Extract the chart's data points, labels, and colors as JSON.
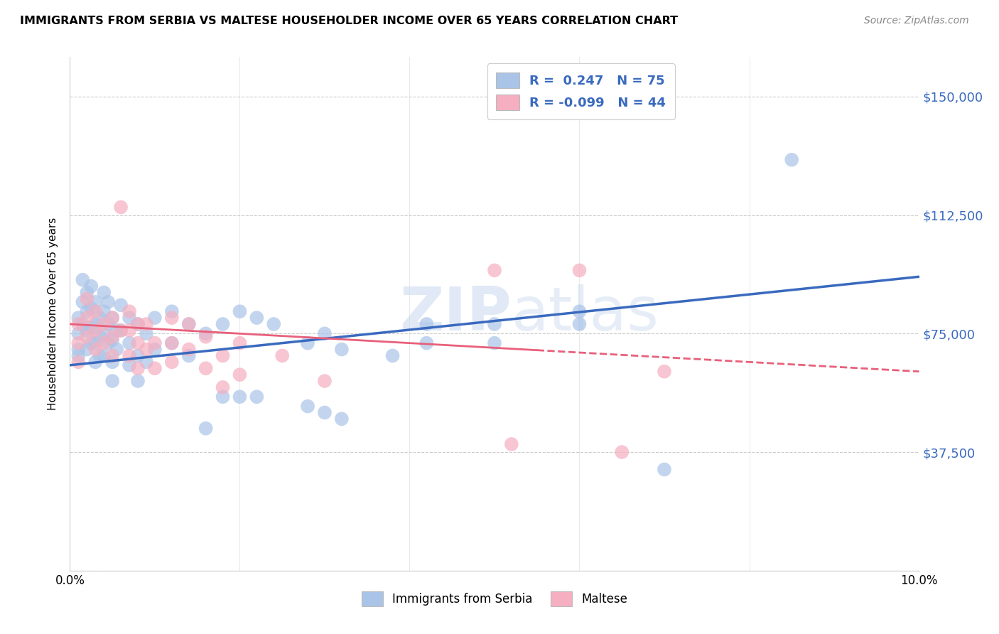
{
  "title": "IMMIGRANTS FROM SERBIA VS MALTESE HOUSEHOLDER INCOME OVER 65 YEARS CORRELATION CHART",
  "source": "Source: ZipAtlas.com",
  "ylabel": "Householder Income Over 65 years",
  "xlim": [
    0.0,
    0.1
  ],
  "ylim": [
    0,
    162500
  ],
  "yticks": [
    0,
    37500,
    75000,
    112500,
    150000
  ],
  "ytick_labels": [
    "",
    "$37,500",
    "$75,000",
    "$112,500",
    "$150,000"
  ],
  "xticks": [
    0.0,
    0.02,
    0.04,
    0.06,
    0.08,
    0.1
  ],
  "xtick_labels": [
    "0.0%",
    "",
    "",
    "",
    "",
    "10.0%"
  ],
  "color_blue": "#aac4e8",
  "color_pink": "#f5afc0",
  "line_blue": "#3a6abf",
  "line_pink": "#e8607a",
  "watermark_zip": "ZIP",
  "watermark_atlas": "atlas",
  "serbia_line": [
    [
      0.0,
      65000
    ],
    [
      0.1,
      93000
    ]
  ],
  "maltese_line": [
    [
      0.0,
      78000
    ],
    [
      0.1,
      63000
    ]
  ],
  "serbia_points": [
    [
      0.001,
      70000
    ],
    [
      0.001,
      75000
    ],
    [
      0.001,
      80000
    ],
    [
      0.001,
      68000
    ],
    [
      0.0015,
      92000
    ],
    [
      0.0015,
      85000
    ],
    [
      0.0015,
      78000
    ],
    [
      0.002,
      88000
    ],
    [
      0.002,
      82000
    ],
    [
      0.002,
      76000
    ],
    [
      0.002,
      70000
    ],
    [
      0.0025,
      90000
    ],
    [
      0.0025,
      83000
    ],
    [
      0.0025,
      77000
    ],
    [
      0.0025,
      72000
    ],
    [
      0.003,
      85000
    ],
    [
      0.003,
      78000
    ],
    [
      0.003,
      72000
    ],
    [
      0.003,
      66000
    ],
    [
      0.0035,
      80000
    ],
    [
      0.0035,
      74000
    ],
    [
      0.0035,
      68000
    ],
    [
      0.004,
      88000
    ],
    [
      0.004,
      82000
    ],
    [
      0.004,
      75000
    ],
    [
      0.004,
      68000
    ],
    [
      0.0045,
      85000
    ],
    [
      0.0045,
      78000
    ],
    [
      0.0045,
      72000
    ],
    [
      0.005,
      80000
    ],
    [
      0.005,
      73000
    ],
    [
      0.005,
      66000
    ],
    [
      0.005,
      60000
    ],
    [
      0.0055,
      76000
    ],
    [
      0.0055,
      70000
    ],
    [
      0.006,
      84000
    ],
    [
      0.006,
      76000
    ],
    [
      0.007,
      80000
    ],
    [
      0.007,
      72000
    ],
    [
      0.007,
      65000
    ],
    [
      0.008,
      78000
    ],
    [
      0.008,
      68000
    ],
    [
      0.008,
      60000
    ],
    [
      0.009,
      75000
    ],
    [
      0.009,
      66000
    ],
    [
      0.01,
      80000
    ],
    [
      0.01,
      70000
    ],
    [
      0.012,
      82000
    ],
    [
      0.012,
      72000
    ],
    [
      0.014,
      78000
    ],
    [
      0.014,
      68000
    ],
    [
      0.016,
      75000
    ],
    [
      0.016,
      45000
    ],
    [
      0.018,
      78000
    ],
    [
      0.018,
      55000
    ],
    [
      0.02,
      82000
    ],
    [
      0.02,
      55000
    ],
    [
      0.022,
      80000
    ],
    [
      0.022,
      55000
    ],
    [
      0.024,
      78000
    ],
    [
      0.028,
      72000
    ],
    [
      0.028,
      52000
    ],
    [
      0.03,
      75000
    ],
    [
      0.03,
      50000
    ],
    [
      0.032,
      70000
    ],
    [
      0.032,
      48000
    ],
    [
      0.038,
      68000
    ],
    [
      0.042,
      78000
    ],
    [
      0.042,
      72000
    ],
    [
      0.05,
      78000
    ],
    [
      0.05,
      72000
    ],
    [
      0.06,
      82000
    ],
    [
      0.06,
      78000
    ],
    [
      0.07,
      32000
    ],
    [
      0.085,
      130000
    ]
  ],
  "maltese_points": [
    [
      0.001,
      78000
    ],
    [
      0.001,
      72000
    ],
    [
      0.001,
      66000
    ],
    [
      0.002,
      86000
    ],
    [
      0.002,
      80000
    ],
    [
      0.002,
      74000
    ],
    [
      0.003,
      82000
    ],
    [
      0.003,
      76000
    ],
    [
      0.003,
      70000
    ],
    [
      0.004,
      78000
    ],
    [
      0.004,
      72000
    ],
    [
      0.005,
      80000
    ],
    [
      0.005,
      74000
    ],
    [
      0.005,
      68000
    ],
    [
      0.006,
      76000
    ],
    [
      0.006,
      115000
    ],
    [
      0.007,
      82000
    ],
    [
      0.007,
      76000
    ],
    [
      0.007,
      68000
    ],
    [
      0.008,
      78000
    ],
    [
      0.008,
      72000
    ],
    [
      0.008,
      64000
    ],
    [
      0.009,
      78000
    ],
    [
      0.009,
      70000
    ],
    [
      0.01,
      72000
    ],
    [
      0.01,
      64000
    ],
    [
      0.012,
      80000
    ],
    [
      0.012,
      72000
    ],
    [
      0.012,
      66000
    ],
    [
      0.014,
      78000
    ],
    [
      0.014,
      70000
    ],
    [
      0.016,
      74000
    ],
    [
      0.016,
      64000
    ],
    [
      0.018,
      68000
    ],
    [
      0.018,
      58000
    ],
    [
      0.02,
      72000
    ],
    [
      0.02,
      62000
    ],
    [
      0.025,
      68000
    ],
    [
      0.03,
      60000
    ],
    [
      0.05,
      95000
    ],
    [
      0.052,
      40000
    ],
    [
      0.06,
      95000
    ],
    [
      0.065,
      37500
    ],
    [
      0.07,
      63000
    ]
  ]
}
